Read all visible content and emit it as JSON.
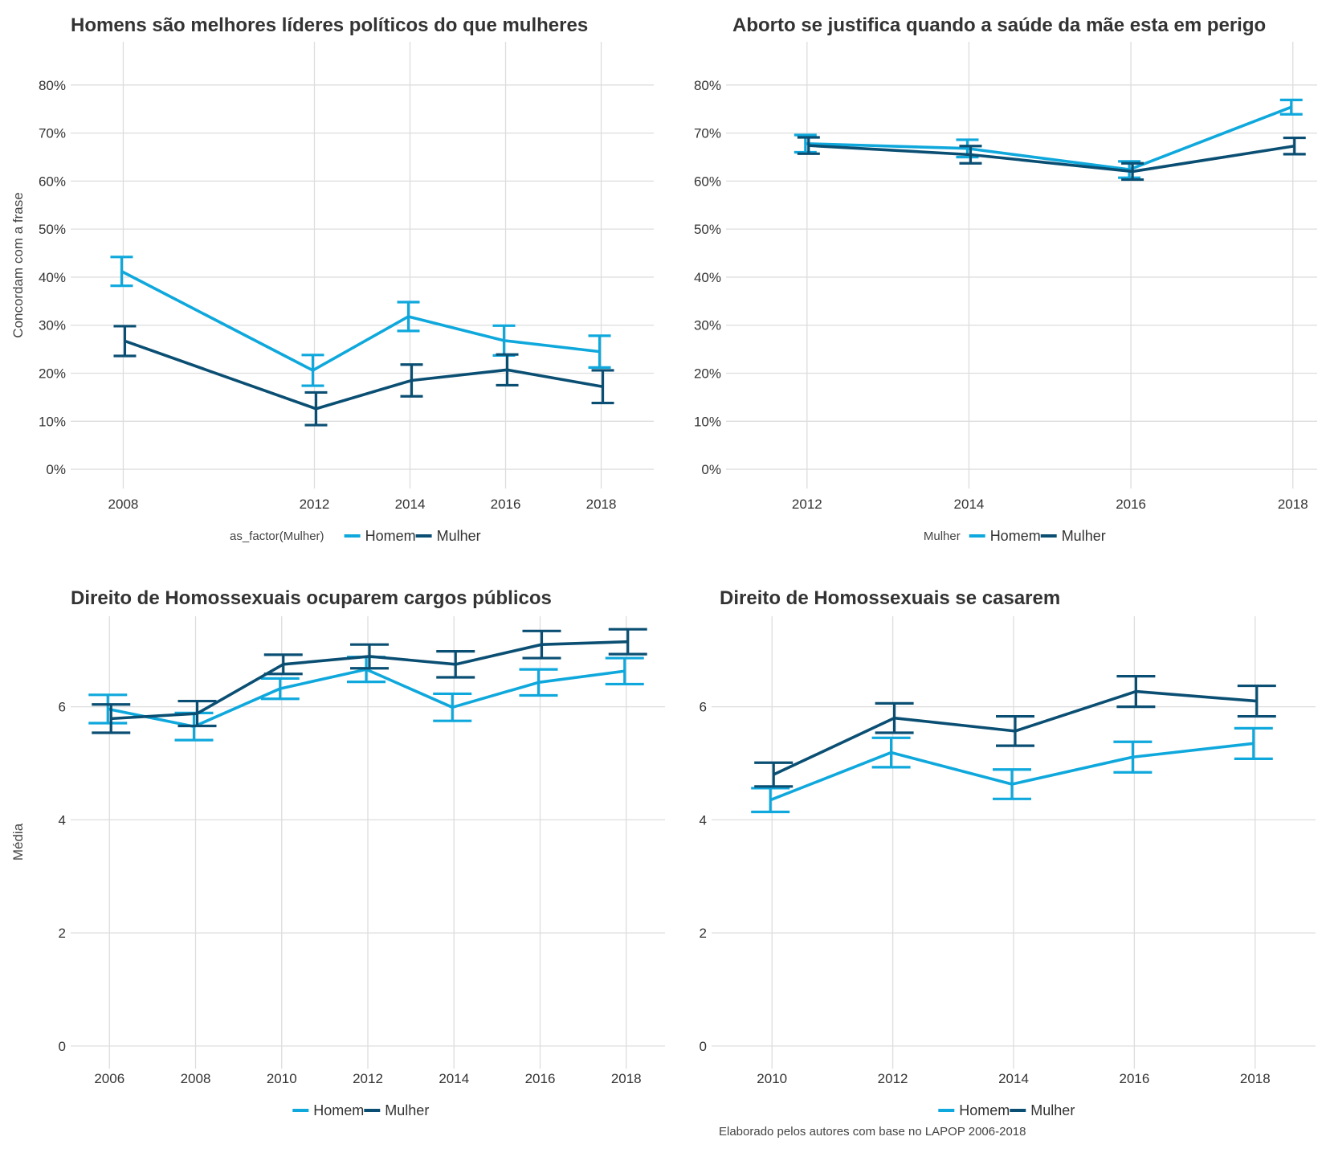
{
  "colors": {
    "Homem": "#0fa8dc",
    "Mulher": "#0a4f73"
  },
  "caption": "Elaborado pelos autores com base no LAPOP 2006-2018",
  "chart_data": [
    {
      "type": "line",
      "title": "Homens são melhores líderes políticos do que mulheres",
      "ylabel": "Concordam com a frase",
      "xlabel": "",
      "x": [
        2008,
        2012,
        2014,
        2016,
        2018
      ],
      "ylim": [
        -0.04,
        0.89
      ],
      "yticks": [
        0,
        0.1,
        0.2,
        0.3,
        0.4,
        0.5,
        0.6,
        0.7,
        0.8
      ],
      "ytick_labels": [
        "0%",
        "10%",
        "20%",
        "30%",
        "40%",
        "50%",
        "60%",
        "70%",
        "80%"
      ],
      "legend_title": "as_factor(Mulher)",
      "legend_position": "bottom",
      "grid": true,
      "series": [
        {
          "name": "Homem",
          "values": [
            0.412,
            0.206,
            0.318,
            0.268,
            0.245
          ],
          "lower": [
            0.382,
            0.174,
            0.288,
            0.237,
            0.212
          ],
          "upper": [
            0.442,
            0.238,
            0.348,
            0.299,
            0.278
          ]
        },
        {
          "name": "Mulher",
          "values": [
            0.267,
            0.126,
            0.185,
            0.207,
            0.172
          ],
          "lower": [
            0.236,
            0.092,
            0.152,
            0.175,
            0.138
          ],
          "upper": [
            0.298,
            0.16,
            0.218,
            0.239,
            0.206
          ]
        }
      ]
    },
    {
      "type": "line",
      "title": "Aborto se justifica quando a saúde da mãe esta em perigo",
      "ylabel": "",
      "xlabel": "",
      "x": [
        2012,
        2014,
        2016,
        2018
      ],
      "ylim": [
        -0.04,
        0.89
      ],
      "yticks": [
        0,
        0.1,
        0.2,
        0.3,
        0.4,
        0.5,
        0.6,
        0.7,
        0.8
      ],
      "ytick_labels": [
        "0%",
        "10%",
        "20%",
        "30%",
        "40%",
        "50%",
        "60%",
        "70%",
        "80%"
      ],
      "legend_title": "Mulher",
      "legend_position": "bottom",
      "grid": true,
      "series": [
        {
          "name": "Homem",
          "values": [
            0.678,
            0.668,
            0.624,
            0.754
          ],
          "lower": [
            0.66,
            0.65,
            0.607,
            0.739
          ],
          "upper": [
            0.696,
            0.686,
            0.641,
            0.769
          ]
        },
        {
          "name": "Mulher",
          "values": [
            0.674,
            0.655,
            0.62,
            0.673
          ],
          "lower": [
            0.657,
            0.637,
            0.603,
            0.656
          ],
          "upper": [
            0.691,
            0.673,
            0.637,
            0.69
          ]
        }
      ]
    },
    {
      "type": "line",
      "title": "Direito de Homossexuais ocuparem cargos públicos",
      "ylabel": "Média",
      "xlabel": "",
      "x": [
        2006,
        2008,
        2010,
        2012,
        2014,
        2016,
        2018
      ],
      "ylim": [
        -0.4,
        7.6
      ],
      "yticks": [
        0,
        2,
        4,
        6
      ],
      "ytick_labels": [
        "0",
        "2",
        "4",
        "6"
      ],
      "legend_title": "",
      "legend_position": "bottom",
      "grid": true,
      "series": [
        {
          "name": "Homem",
          "values": [
            5.96,
            5.65,
            6.32,
            6.66,
            5.99,
            6.43,
            6.63
          ],
          "lower": [
            5.71,
            5.41,
            6.14,
            6.44,
            5.75,
            6.2,
            6.4
          ],
          "upper": [
            6.21,
            5.89,
            6.5,
            6.88,
            6.23,
            6.66,
            6.86
          ]
        },
        {
          "name": "Mulher",
          "values": [
            5.79,
            5.88,
            6.75,
            6.89,
            6.75,
            7.1,
            7.15
          ],
          "lower": [
            5.54,
            5.66,
            6.58,
            6.68,
            6.52,
            6.86,
            6.93
          ],
          "upper": [
            6.04,
            6.1,
            6.92,
            7.1,
            6.98,
            7.34,
            7.37
          ]
        }
      ]
    },
    {
      "type": "line",
      "title": "Direito de Homossexuais se casarem",
      "ylabel": "",
      "xlabel": "",
      "x": [
        2010,
        2012,
        2014,
        2016,
        2018
      ],
      "ylim": [
        -0.4,
        7.6
      ],
      "yticks": [
        0,
        2,
        4,
        6
      ],
      "ytick_labels": [
        "0",
        "2",
        "4",
        "6"
      ],
      "legend_title": "",
      "legend_position": "bottom",
      "grid": true,
      "series": [
        {
          "name": "Homem",
          "values": [
            4.35,
            5.19,
            4.63,
            5.11,
            5.35
          ],
          "lower": [
            4.14,
            4.93,
            4.37,
            4.84,
            5.08
          ],
          "upper": [
            4.56,
            5.45,
            4.89,
            5.38,
            5.62
          ]
        },
        {
          "name": "Mulher",
          "values": [
            4.8,
            5.8,
            5.57,
            6.27,
            6.1
          ],
          "lower": [
            4.59,
            5.54,
            5.31,
            6.0,
            5.83
          ],
          "upper": [
            5.01,
            6.06,
            5.83,
            6.54,
            6.37
          ]
        }
      ]
    }
  ]
}
